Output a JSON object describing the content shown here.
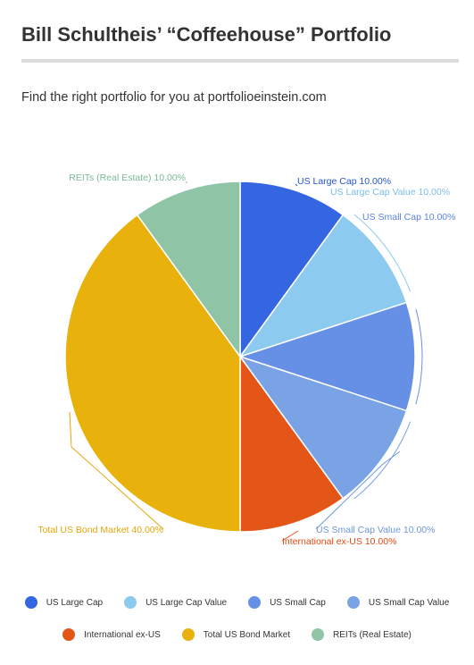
{
  "header": {
    "title": "Bill Schultheis’ “Coffeehouse” Portfolio",
    "subtitle": "Find the right portfolio for you at portfolioeinstein.com"
  },
  "chart_data": {
    "type": "pie",
    "title": "Bill Schultheis’ “Coffeehouse” Portfolio",
    "slices": [
      {
        "label": "US Large Cap",
        "value": 10.0,
        "color": "#3366e0",
        "text_color": "#2255cc",
        "data_label": "US Large Cap 10.00%"
      },
      {
        "label": "US Large Cap Value",
        "value": 10.0,
        "color": "#8dcaf0",
        "text_color": "#7bbde8",
        "data_label": "US Large Cap Value 10.00%"
      },
      {
        "label": "US Small Cap",
        "value": 10.0,
        "color": "#6690e6",
        "text_color": "#5a85dd",
        "data_label": "US Small Cap 10.00%"
      },
      {
        "label": "US Small Cap Value",
        "value": 10.0,
        "color": "#7aa3e5",
        "text_color": "#6f97dc",
        "data_label": "US Small Cap Value 10.00%"
      },
      {
        "label": "International ex-US",
        "value": 10.0,
        "color": "#e45518",
        "text_color": "#e04b14",
        "data_label": "International ex-US 10.00%"
      },
      {
        "label": "Total US Bond Market",
        "value": 40.0,
        "color": "#e8b10c",
        "text_color": "#e3a70c",
        "data_label": "Total US Bond Market 40.00%"
      },
      {
        "label": "REITs (Real Estate)",
        "value": 10.0,
        "color": "#8fc4a7",
        "text_color": "#7db897",
        "data_label": "REITs (Real Estate) 10.00%"
      }
    ],
    "legend_position": "bottom"
  }
}
